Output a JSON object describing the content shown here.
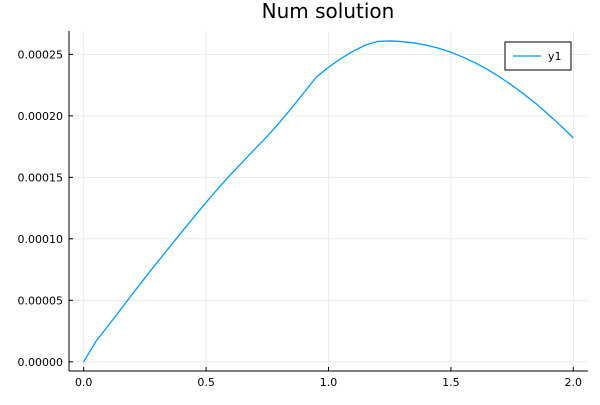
{
  "chart_data": {
    "type": "line",
    "title": "Num solution",
    "xlabel": "",
    "ylabel": "",
    "xlim": [
      -0.06,
      2.06
    ],
    "ylim": [
      -7.5e-06,
      0.000269
    ],
    "xticks": [
      0.0,
      0.5,
      1.0,
      1.5,
      2.0
    ],
    "xtick_labels": [
      "0.0",
      "0.5",
      "1.0",
      "1.5",
      "2.0"
    ],
    "yticks": [
      0.0,
      5e-05,
      0.0001,
      0.00015,
      0.0002,
      0.00025
    ],
    "ytick_labels": [
      "0.00000",
      "0.00005",
      "0.00010",
      "0.00015",
      "0.00020",
      "0.00025"
    ],
    "grid": true,
    "legend": {
      "position": "top-right",
      "entries": [
        "y1"
      ]
    },
    "series": [
      {
        "name": "y1",
        "color": "#009af9",
        "x": [
          0.0,
          0.05,
          0.1,
          0.15,
          0.2,
          0.25,
          0.3,
          0.35,
          0.4,
          0.45,
          0.5,
          0.55,
          0.6,
          0.65,
          0.7,
          0.75,
          0.8,
          0.85,
          0.9,
          0.95,
          1.0,
          1.05,
          1.1,
          1.15,
          1.2,
          1.25,
          1.3,
          1.35,
          1.4,
          1.45,
          1.5,
          1.55,
          1.6,
          1.65,
          1.7,
          1.75,
          1.8,
          1.85,
          1.9,
          1.95,
          2.0
        ],
        "y": [
          0.0,
          1.66e-05,
          2.93e-05,
          4.23e-05,
          5.53e-05,
          6.82e-05,
          8.08e-05,
          9.31e-05,
          0.0001054,
          0.0001176,
          0.0001296,
          0.0001412,
          0.0001522,
          0.0001627,
          0.0001732,
          0.0001835,
          0.0001946,
          0.0002065,
          0.000219,
          0.0002315,
          0.0002395,
          0.0002465,
          0.0002525,
          0.0002575,
          0.0002605,
          0.0002609,
          0.0002604,
          0.0002593,
          0.0002575,
          0.000255,
          0.0002517,
          0.0002477,
          0.000243,
          0.0002376,
          0.0002315,
          0.0002248,
          0.0002174,
          0.0002095,
          0.0002008,
          0.0001917,
          0.0001821
        ]
      }
    ]
  }
}
